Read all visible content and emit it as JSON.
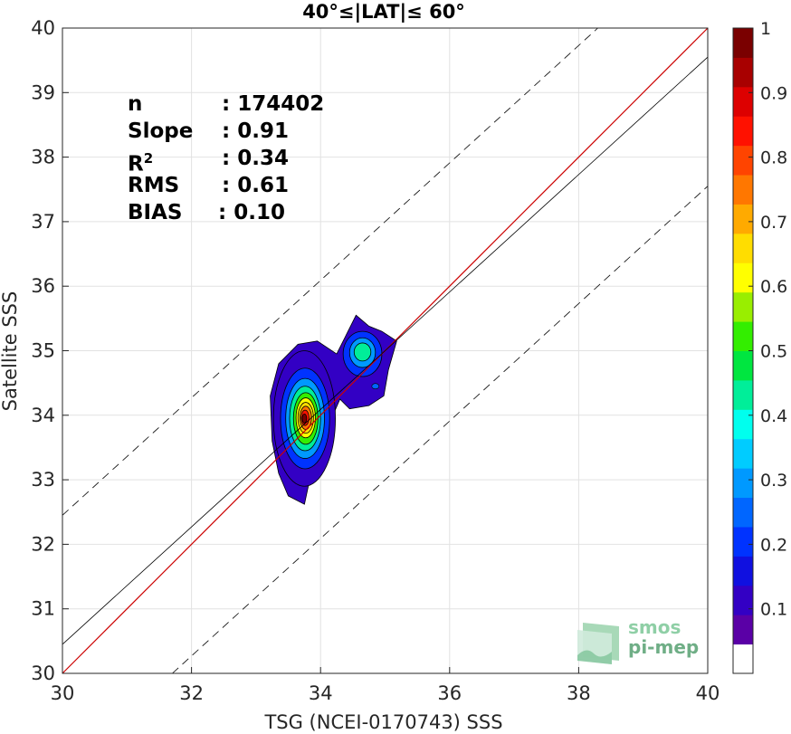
{
  "chart_data": {
    "type": "heatmap",
    "title": "40°≤|LAT|≤ 60°",
    "xlabel": "TSG (NCEI-0170743) SSS",
    "ylabel": "Satellite SSS",
    "xlim": [
      30,
      40
    ],
    "ylim": [
      30,
      40
    ],
    "xticks": [
      "30",
      "32",
      "34",
      "36",
      "38",
      "40"
    ],
    "yticks": [
      "30",
      "31",
      "32",
      "33",
      "34",
      "35",
      "36",
      "37",
      "38",
      "39",
      "40"
    ],
    "grid": true,
    "lines": {
      "one_to_one": {
        "slope": 1,
        "intercept": 0,
        "color": "#cc0000"
      },
      "regression": {
        "slope": 0.91,
        "x0": 30,
        "y0": 30.45,
        "color": "#000000"
      },
      "plus_minus_bounds": {
        "offset": 2.0,
        "style": "dashed"
      }
    },
    "density_peaks": [
      {
        "x": 33.75,
        "y": 33.95,
        "value": 1.0
      },
      {
        "x": 34.65,
        "y": 34.95,
        "value": 0.45
      }
    ],
    "stats": [
      {
        "name": "n",
        "value": ": 174402"
      },
      {
        "name": "Slope",
        "value": ": 0.91"
      },
      {
        "name": "R",
        "sup": "2",
        "value": ": 0.34"
      },
      {
        "name": "RMS",
        "value": ": 0.61"
      },
      {
        "name": "BIAS",
        "value": ": 0.10"
      }
    ],
    "colorbar": {
      "range": [
        0,
        1
      ],
      "ticks": [
        "0.1",
        "0.2",
        "0.3",
        "0.4",
        "0.5",
        "0.6",
        "0.7",
        "0.8",
        "0.9",
        "1"
      ],
      "colors": [
        "#ffffff",
        "#5a00a6",
        "#3300c4",
        "#1010e0",
        "#0033ff",
        "#0066ff",
        "#0099ff",
        "#00ccff",
        "#00ffee",
        "#00ee99",
        "#00e640",
        "#33ee00",
        "#99ee00",
        "#ffff00",
        "#ffdd00",
        "#ffaa00",
        "#ff7700",
        "#ff4400",
        "#ff1100",
        "#dd0000",
        "#a80000",
        "#7a0000"
      ]
    }
  },
  "logo": {
    "line1": "smos",
    "line2": "pi-mep"
  }
}
